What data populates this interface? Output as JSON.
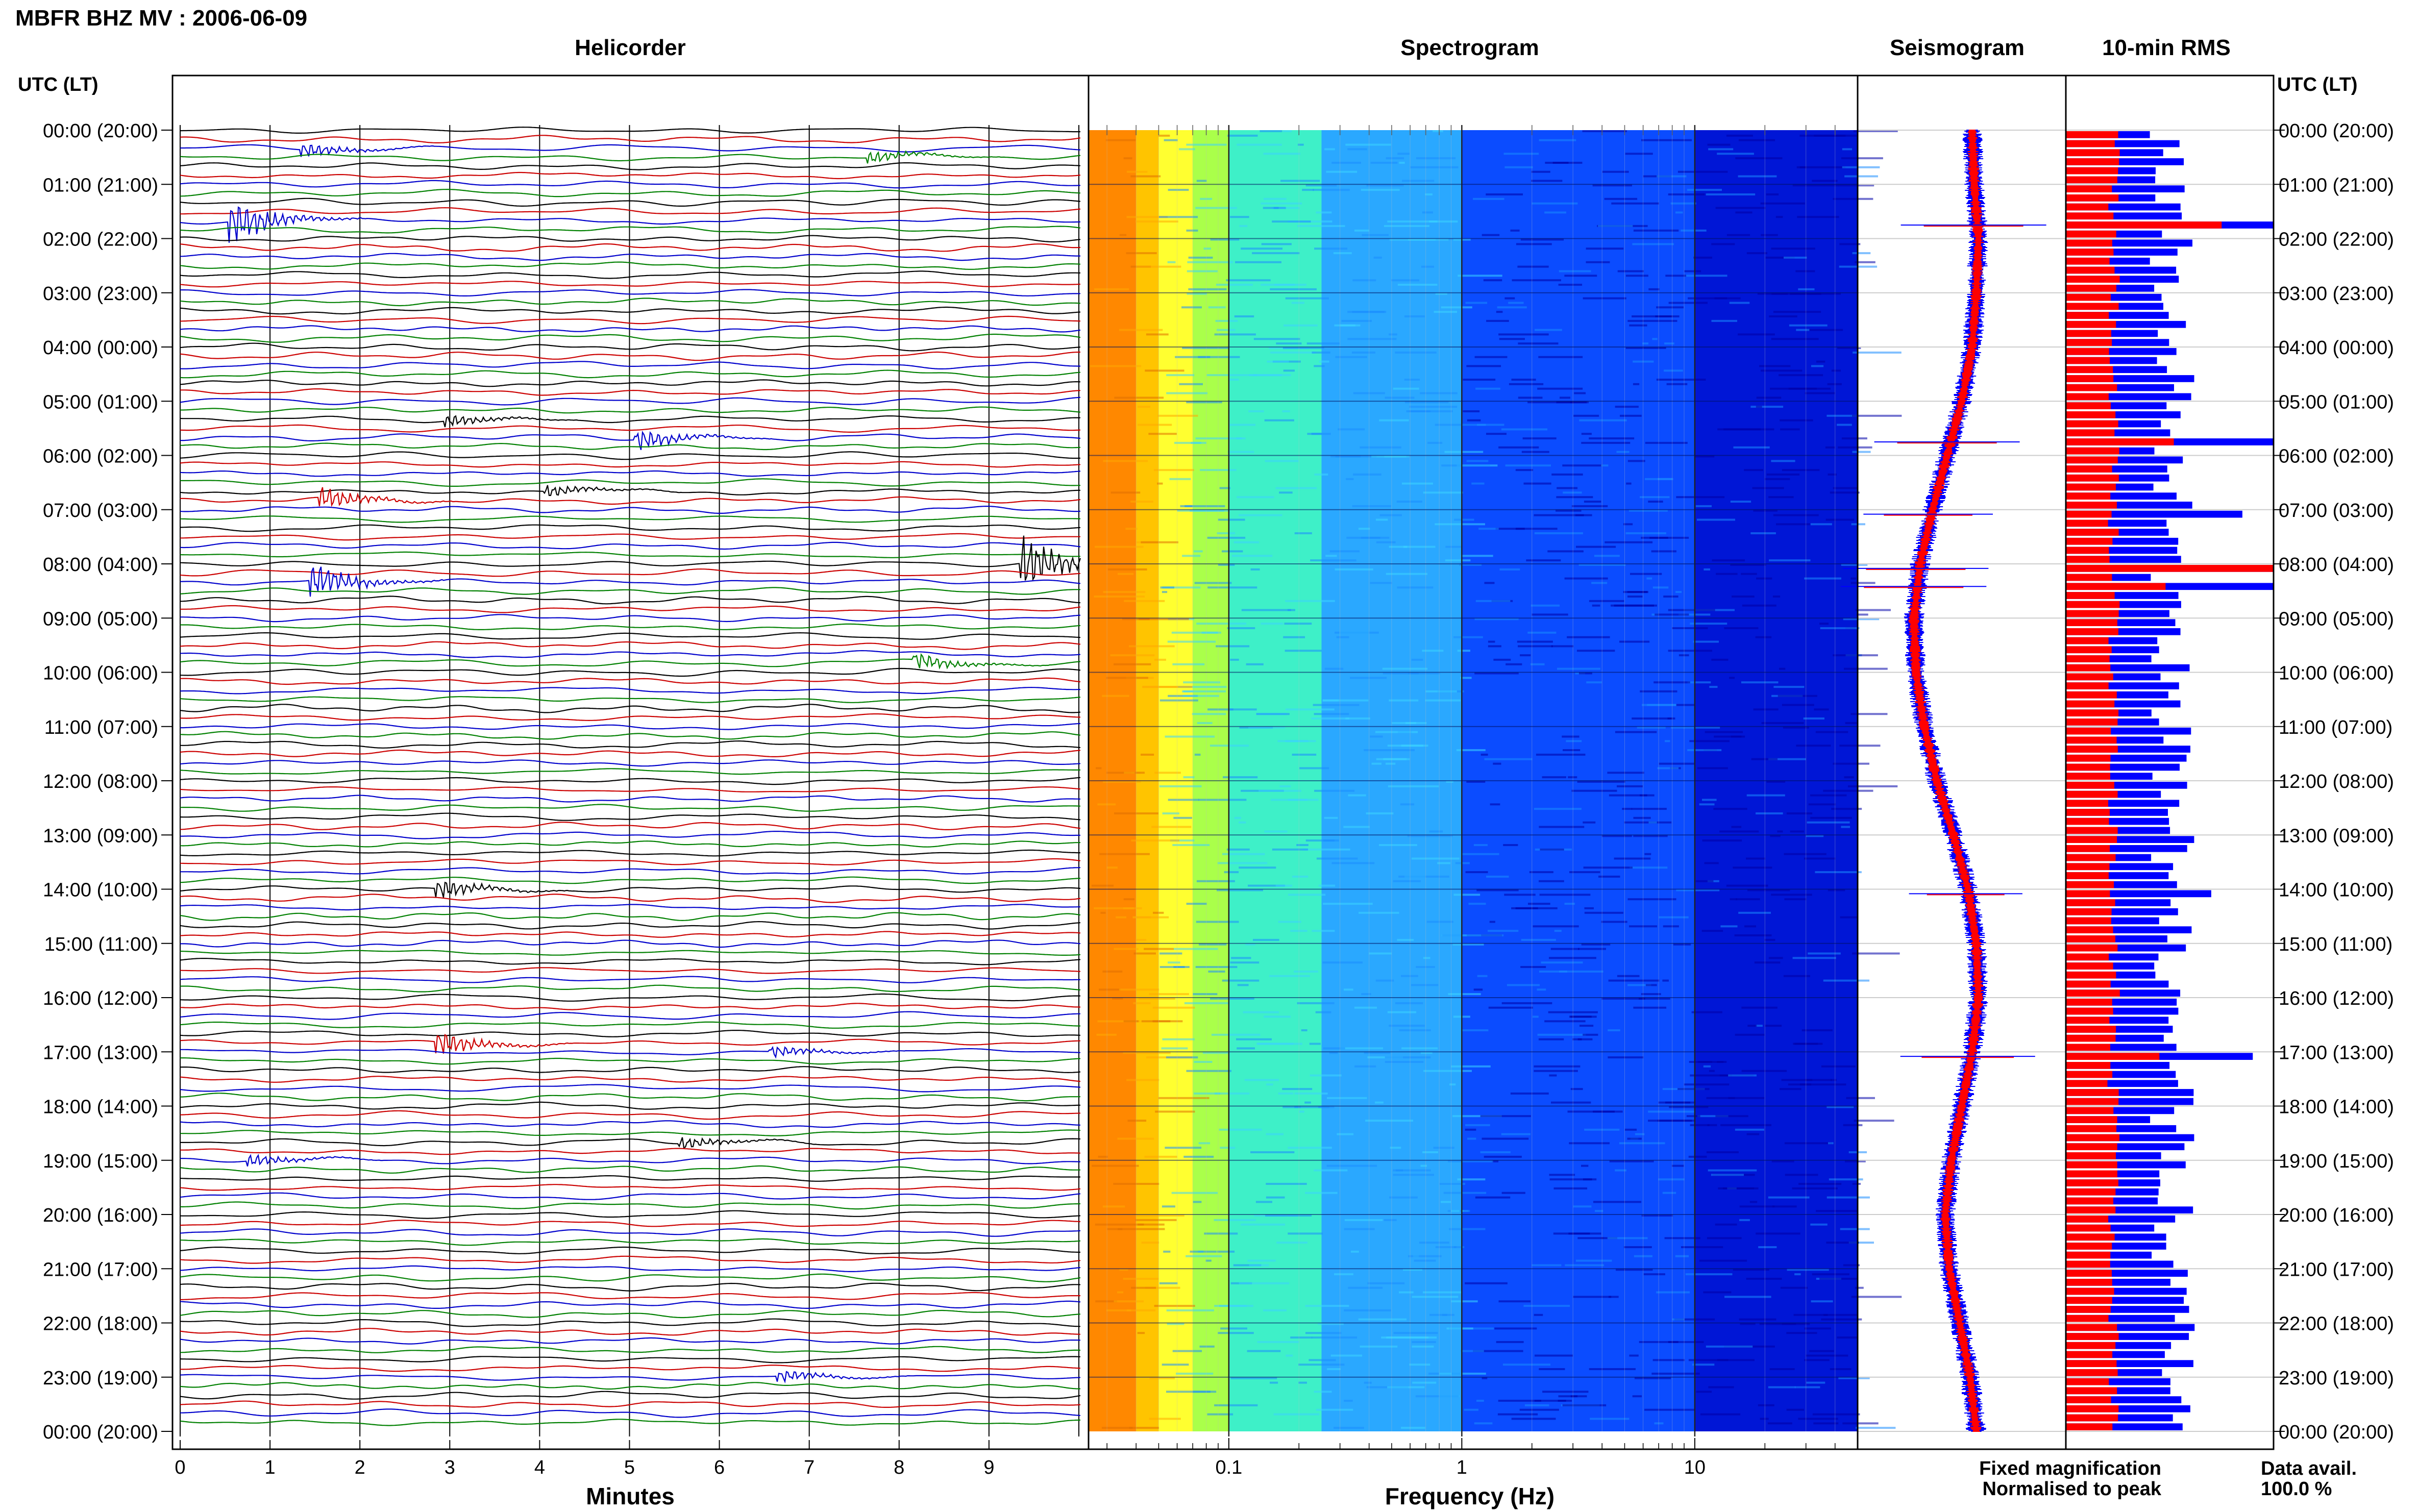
{
  "header": {
    "station_title": "MBFR BHZ MV : 2006-06-09",
    "panel_helicorder": "Helicorder",
    "panel_spectrogram": "Spectrogram",
    "panel_seismogram": "Seismogram",
    "panel_rms": "10-min RMS",
    "time_axis_left": "UTC (LT)",
    "time_axis_right": "UTC (LT)"
  },
  "chart_data": [
    {
      "type": "line",
      "name": "helicorder",
      "title": "Helicorder",
      "xlabel": "Minutes",
      "x_ticks": [
        "0",
        "1",
        "2",
        "3",
        "4",
        "5",
        "6",
        "7",
        "8",
        "9"
      ],
      "xlim": [
        0,
        10
      ],
      "trace_colors": [
        "#000000",
        "#cc0000",
        "#0000cc",
        "#008000"
      ],
      "rows_per_day": 144,
      "row_minutes": 10,
      "events": [
        {
          "time": "00:20",
          "minute": 1.4,
          "amp": 0.6
        },
        {
          "time": "00:30",
          "minute": 7.7,
          "amp": 0.5
        },
        {
          "time": "01:40",
          "minute": 0.6,
          "amp": 1.8
        },
        {
          "time": "05:20",
          "minute": 3.0,
          "amp": 0.5
        },
        {
          "time": "05:40",
          "minute": 5.1,
          "amp": 0.9
        },
        {
          "time": "06:50",
          "minute": 1.6,
          "amp": 0.9
        },
        {
          "time": "06:40",
          "minute": 4.1,
          "amp": 0.5
        },
        {
          "time": "08:00",
          "minute": 9.4,
          "amp": 2.2
        },
        {
          "time": "08:20",
          "minute": 1.5,
          "amp": 1.4
        },
        {
          "time": "09:50",
          "minute": 8.2,
          "amp": 0.7
        },
        {
          "time": "14:00",
          "minute": 2.9,
          "amp": 0.8
        },
        {
          "time": "16:50",
          "minute": 2.9,
          "amp": 1.0
        },
        {
          "time": "17:00",
          "minute": 6.6,
          "amp": 0.5
        },
        {
          "time": "18:40",
          "minute": 5.6,
          "amp": 0.5
        },
        {
          "time": "19:00",
          "minute": 0.8,
          "amp": 0.5
        },
        {
          "time": "23:00",
          "minute": 6.7,
          "amp": 0.5
        }
      ]
    },
    {
      "type": "heatmap",
      "name": "spectrogram",
      "title": "Spectrogram",
      "xlabel": "Frequency (Hz)",
      "x_scale": "log",
      "xlim": [
        0.025,
        50
      ],
      "x_ticks": [
        "0.1",
        "1",
        "10"
      ],
      "colormap": [
        "#ff6a00",
        "#ffc400",
        "#ffff00",
        "#aaff3a",
        "#3cffc0",
        "#19b4ff",
        "#0a5aff",
        "#0000c8"
      ],
      "band_colors": [
        {
          "freq": [
            0.025,
            0.04
          ],
          "color": "#ff8800"
        },
        {
          "freq": [
            0.04,
            0.05
          ],
          "color": "#ffc400"
        },
        {
          "freq": [
            0.05,
            0.07
          ],
          "color": "#ffff30"
        },
        {
          "freq": [
            0.07,
            0.1
          ],
          "color": "#aaff4a"
        },
        {
          "freq": [
            0.1,
            0.25
          ],
          "color": "#3ef0c8"
        },
        {
          "freq": [
            0.25,
            1
          ],
          "color": "#2aa8ff"
        },
        {
          "freq": [
            1,
            10
          ],
          "color": "#0b4cff"
        },
        {
          "freq": [
            10,
            50
          ],
          "color": "#0016d6"
        }
      ]
    },
    {
      "type": "line",
      "name": "seismogram",
      "title": "Seismogram",
      "series": [
        {
          "name": "Fixed magnification",
          "color": "#0000ff"
        },
        {
          "name": "Normalised to peak",
          "color": "#ff0000"
        }
      ],
      "center_offsets": [
        0.55,
        0.56,
        0.58,
        0.57,
        0.55,
        0.5,
        0.43,
        0.36,
        0.3,
        0.27,
        0.28,
        0.32,
        0.38,
        0.46,
        0.53,
        0.57,
        0.58,
        0.55,
        0.5,
        0.45,
        0.42,
        0.44,
        0.49,
        0.54,
        0.57
      ]
    },
    {
      "type": "bar",
      "name": "rms",
      "title": "10-min RMS",
      "orientation": "horizontal",
      "series": [
        {
          "name": "Fixed magnification",
          "color": "#0000ff"
        },
        {
          "name": "Normalised to peak",
          "color": "#ff0000"
        }
      ],
      "blue_spikes": [
        {
          "time": "01:40",
          "value": 1.0
        },
        {
          "time": "05:40",
          "value": 1.0
        },
        {
          "time": "07:00",
          "value": 0.85
        },
        {
          "time": "08:00",
          "value": 1.0
        },
        {
          "time": "08:20",
          "value": 1.0
        },
        {
          "time": "14:00",
          "value": 0.7
        },
        {
          "time": "17:00",
          "value": 0.9
        }
      ],
      "red_spikes": [
        {
          "time": "01:40",
          "value": 0.75
        },
        {
          "time": "05:40",
          "value": 0.52
        },
        {
          "time": "08:00",
          "value": 1.0
        },
        {
          "time": "08:20",
          "value": 0.48
        },
        {
          "time": "17:00",
          "value": 0.45
        }
      ]
    }
  ],
  "time_labels": [
    "00:00 (20:00)",
    "01:00 (21:00)",
    "02:00 (22:00)",
    "03:00 (23:00)",
    "04:00 (00:00)",
    "05:00 (01:00)",
    "06:00 (02:00)",
    "07:00 (03:00)",
    "08:00 (04:00)",
    "09:00 (05:00)",
    "10:00 (06:00)",
    "11:00 (07:00)",
    "12:00 (08:00)",
    "13:00 (09:00)",
    "14:00 (10:00)",
    "15:00 (11:00)",
    "16:00 (12:00)",
    "17:00 (13:00)",
    "18:00 (14:00)",
    "19:00 (15:00)",
    "20:00 (16:00)",
    "21:00 (17:00)",
    "22:00 (18:00)",
    "23:00 (19:00)",
    "00:00 (20:00)"
  ],
  "legend": {
    "fixed": "Fixed magnification",
    "normalised": "Normalised to peak",
    "fixed_color": "#0000ff",
    "normalised_color": "#ff0000"
  },
  "data_avail": {
    "label": "Data avail.",
    "value": "100.0 %"
  }
}
